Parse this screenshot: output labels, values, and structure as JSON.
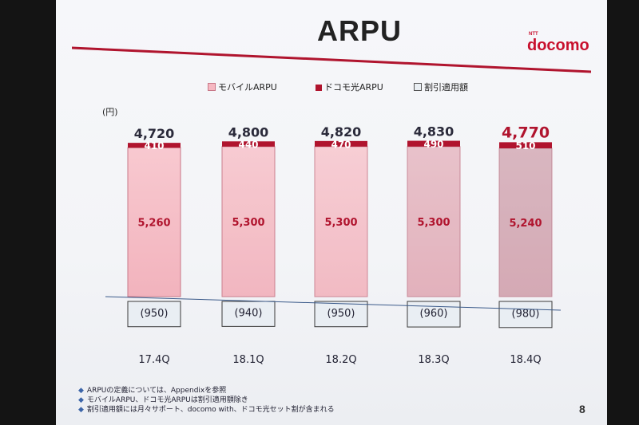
{
  "slide": {
    "title": "ARPU",
    "logo": "docomo",
    "logo_small": "NTT",
    "page_number": "8"
  },
  "colors": {
    "mobile": "#f6b8c2",
    "hikari": "#b0142e",
    "discount": "#e9eef3",
    "axis_line": "#3b5a8a",
    "title_line": "#b0142e"
  },
  "legend": [
    {
      "label": "モバイルARPU",
      "color": "#f6b8c2"
    },
    {
      "label": "ドコモ光ARPU",
      "color": "#b0142e"
    },
    {
      "label": "割引適用額",
      "color": "#e9eef3"
    }
  ],
  "chart_data": {
    "type": "bar",
    "stacked": true,
    "unit": "(円)",
    "categories": [
      "17.4Q",
      "18.1Q",
      "18.2Q",
      "18.3Q",
      "18.4Q"
    ],
    "totals": [
      "4,720",
      "4,800",
      "4,820",
      "4,830",
      "4,770"
    ],
    "series": [
      {
        "name": "モバイルARPU",
        "values": [
          5260,
          5300,
          5300,
          5300,
          5240
        ],
        "labels": [
          "5,260",
          "5,300",
          "5,300",
          "5,300",
          "5,240"
        ]
      },
      {
        "name": "ドコモ光ARPU",
        "values": [
          410,
          440,
          470,
          490,
          510
        ],
        "labels": [
          "410",
          "440",
          "470",
          "490",
          "510"
        ]
      },
      {
        "name": "割引適用額",
        "values": [
          -950,
          -940,
          -950,
          -960,
          -980
        ],
        "labels": [
          "(950)",
          "(940)",
          "(950)",
          "(960)",
          "(980)"
        ]
      }
    ],
    "ylabel": "",
    "grid": false,
    "legend_position": "top"
  },
  "notes": [
    "ARPUの定義については、Appendixを参照",
    "モバイルARPU、ドコモ光ARPUは割引適用額除き",
    "割引適用額には月々サポート、docomo with、ドコモ光セット割が含まれる"
  ]
}
